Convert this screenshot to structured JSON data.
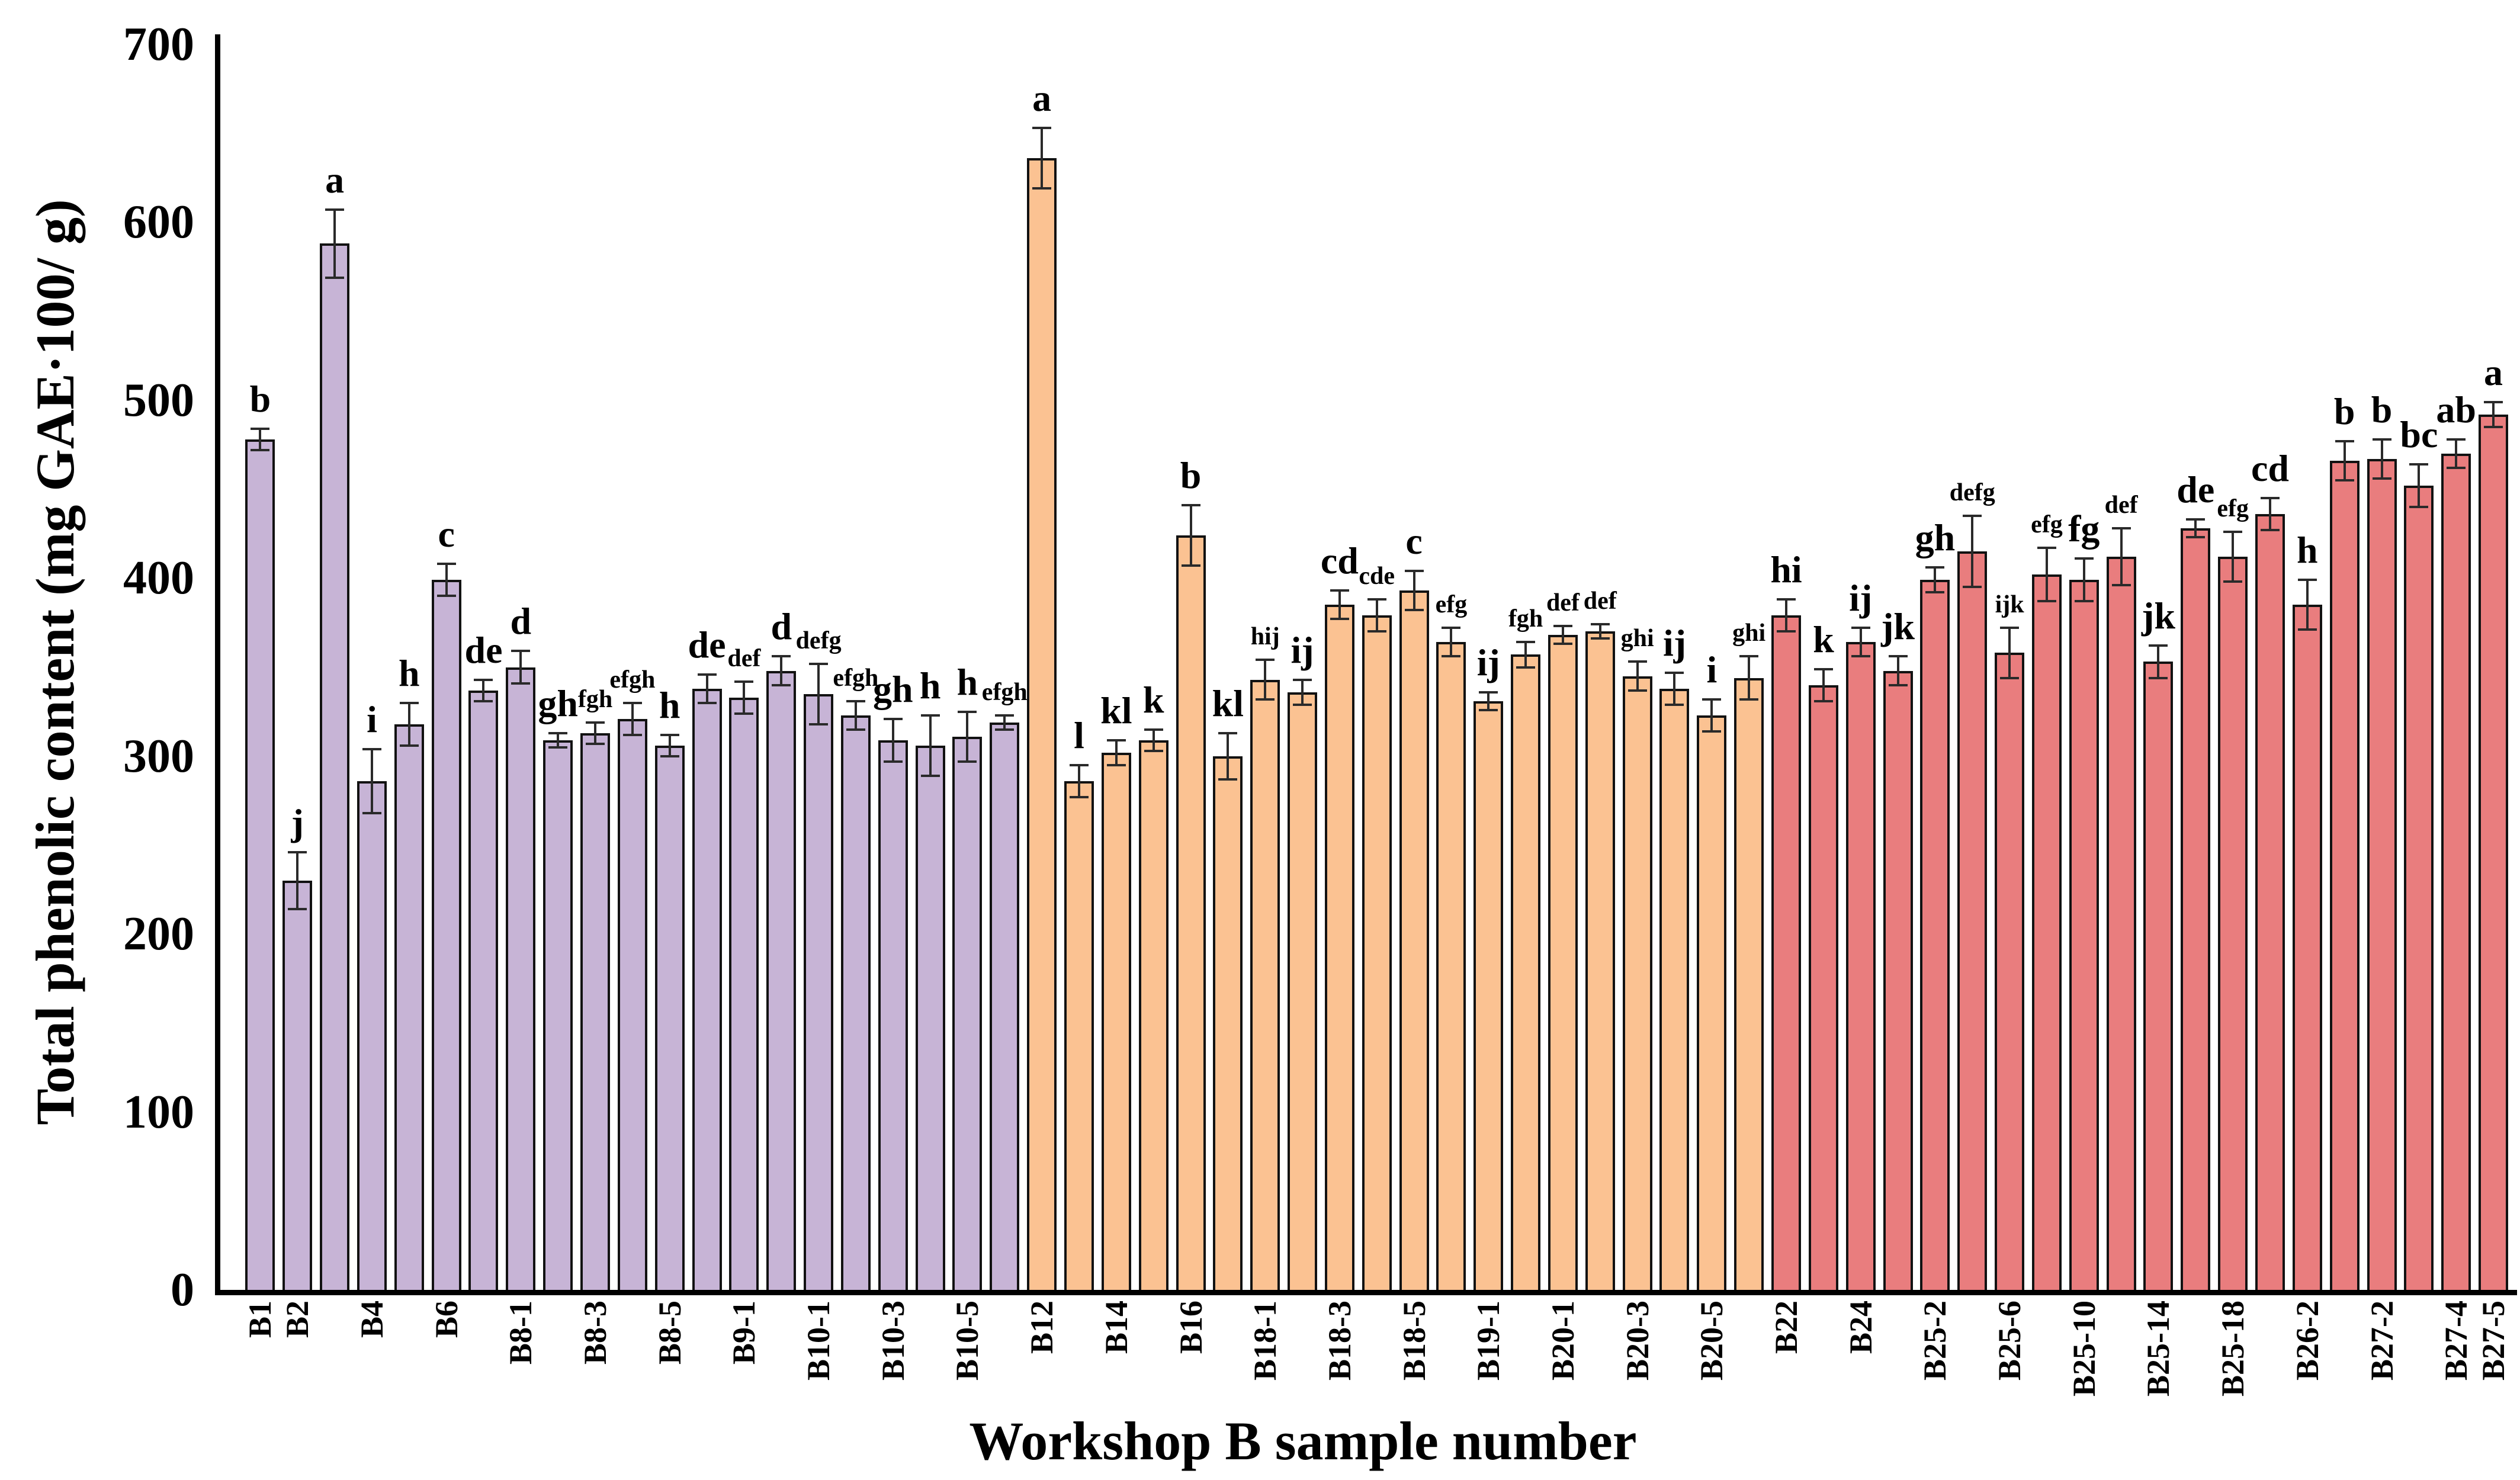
{
  "chart_data": {
    "type": "bar",
    "title": "",
    "xlabel": "Workshop B sample number",
    "ylabel": "Total phenolic content (mg GAE·100/ g)",
    "ylim": [
      0,
      700
    ],
    "yticks": [
      0,
      100,
      200,
      300,
      400,
      500,
      600,
      700
    ],
    "grid": false,
    "legend": "none",
    "error_bars": "plus-minus with caps",
    "groups": {
      "purple": {
        "color": "#C7B4D6"
      },
      "orange": {
        "color": "#FBC292"
      },
      "red": {
        "color": "#E97D7E"
      }
    },
    "bars": [
      {
        "label": "B1",
        "letter": "b",
        "value": 478,
        "err": 6,
        "group": "purple"
      },
      {
        "label": "B2",
        "letter": "j",
        "value": 230,
        "err": 16,
        "group": "purple"
      },
      {
        "label": null,
        "letter": "a",
        "value": 588,
        "err": 19,
        "group": "purple"
      },
      {
        "label": "B4",
        "letter": "i",
        "value": 286,
        "err": 18,
        "group": "purple"
      },
      {
        "label": null,
        "letter": "h",
        "value": 318,
        "err": 12,
        "group": "purple"
      },
      {
        "label": "B6",
        "letter": "c",
        "value": 399,
        "err": 9,
        "group": "purple"
      },
      {
        "label": null,
        "letter": "de",
        "value": 337,
        "err": 6,
        "group": "purple"
      },
      {
        "label": "B8-1",
        "letter": "d",
        "value": 350,
        "err": 9,
        "group": "purple"
      },
      {
        "label": null,
        "letter": "gh",
        "value": 309,
        "err": 4,
        "group": "purple"
      },
      {
        "label": "B8-3",
        "letter": "fgh",
        "value": 313,
        "err": 6,
        "group": "purple"
      },
      {
        "label": null,
        "letter": "efgh",
        "value": 321,
        "err": 9,
        "group": "purple"
      },
      {
        "label": "B8-5",
        "letter": "h",
        "value": 306,
        "err": 6,
        "group": "purple"
      },
      {
        "label": null,
        "letter": "de",
        "value": 338,
        "err": 8,
        "group": "purple"
      },
      {
        "label": "B9-1",
        "letter": "def",
        "value": 333,
        "err": 9,
        "group": "purple"
      },
      {
        "label": null,
        "letter": "d",
        "value": 348,
        "err": 8,
        "group": "purple"
      },
      {
        "label": "B10-1",
        "letter": "defg",
        "value": 335,
        "err": 17,
        "group": "purple"
      },
      {
        "label": null,
        "letter": "efgh",
        "value": 323,
        "err": 8,
        "group": "purple"
      },
      {
        "label": "B10-3",
        "letter": "gh",
        "value": 309,
        "err": 12,
        "group": "purple"
      },
      {
        "label": null,
        "letter": "h",
        "value": 306,
        "err": 17,
        "group": "purple"
      },
      {
        "label": "B10-5",
        "letter": "h",
        "value": 311,
        "err": 14,
        "group": "purple"
      },
      {
        "label": null,
        "letter": "efgh",
        "value": 319,
        "err": 4,
        "group": "purple"
      },
      {
        "label": "B12",
        "letter": "a",
        "value": 636,
        "err": 17,
        "group": "orange"
      },
      {
        "label": null,
        "letter": "l",
        "value": 286,
        "err": 9,
        "group": "orange"
      },
      {
        "label": "B14",
        "letter": "kl",
        "value": 302,
        "err": 7,
        "group": "orange"
      },
      {
        "label": null,
        "letter": "k",
        "value": 309,
        "err": 6,
        "group": "orange"
      },
      {
        "label": "B16",
        "letter": "b",
        "value": 424,
        "err": 17,
        "group": "orange"
      },
      {
        "label": null,
        "letter": "kl",
        "value": 300,
        "err": 13,
        "group": "orange"
      },
      {
        "label": "B18-1",
        "letter": "hij",
        "value": 343,
        "err": 11,
        "group": "orange"
      },
      {
        "label": null,
        "letter": "ij",
        "value": 336,
        "err": 7,
        "group": "orange"
      },
      {
        "label": "B18-3",
        "letter": "cd",
        "value": 385,
        "err": 8,
        "group": "orange"
      },
      {
        "label": null,
        "letter": "cde",
        "value": 379,
        "err": 9,
        "group": "orange"
      },
      {
        "label": "B18-5",
        "letter": "c",
        "value": 393,
        "err": 11,
        "group": "orange"
      },
      {
        "label": null,
        "letter": "efg",
        "value": 364,
        "err": 8,
        "group": "orange"
      },
      {
        "label": "B19-1",
        "letter": "ij",
        "value": 331,
        "err": 5,
        "group": "orange"
      },
      {
        "label": null,
        "letter": "fgh",
        "value": 357,
        "err": 7,
        "group": "orange"
      },
      {
        "label": "B20-1",
        "letter": "def",
        "value": 368,
        "err": 5,
        "group": "orange"
      },
      {
        "label": null,
        "letter": "def",
        "value": 370,
        "err": 4,
        "group": "orange"
      },
      {
        "label": "B20-3",
        "letter": "ghi",
        "value": 345,
        "err": 8,
        "group": "orange"
      },
      {
        "label": null,
        "letter": "ij",
        "value": 338,
        "err": 9,
        "group": "orange"
      },
      {
        "label": "B20-5",
        "letter": "i",
        "value": 323,
        "err": 9,
        "group": "orange"
      },
      {
        "label": null,
        "letter": "ghi",
        "value": 344,
        "err": 12,
        "group": "orange"
      },
      {
        "label": "B22",
        "letter": "hi",
        "value": 379,
        "err": 9,
        "group": "red"
      },
      {
        "label": null,
        "letter": "k",
        "value": 340,
        "err": 9,
        "group": "red"
      },
      {
        "label": "B24",
        "letter": "ij",
        "value": 364,
        "err": 8,
        "group": "red"
      },
      {
        "label": null,
        "letter": "jk",
        "value": 348,
        "err": 8,
        "group": "red"
      },
      {
        "label": "B25-2",
        "letter": "gh",
        "value": 399,
        "err": 7,
        "group": "red"
      },
      {
        "label": null,
        "letter": "defg",
        "value": 415,
        "err": 20,
        "group": "red"
      },
      {
        "label": "B25-6",
        "letter": "ijk",
        "value": 358,
        "err": 14,
        "group": "red"
      },
      {
        "label": null,
        "letter": "efg",
        "value": 402,
        "err": 15,
        "group": "red"
      },
      {
        "label": "B25-10",
        "letter": "fg",
        "value": 399,
        "err": 12,
        "group": "red"
      },
      {
        "label": null,
        "letter": "def",
        "value": 412,
        "err": 16,
        "group": "red"
      },
      {
        "label": "B25-14",
        "letter": "jk",
        "value": 353,
        "err": 9,
        "group": "red"
      },
      {
        "label": null,
        "letter": "de",
        "value": 428,
        "err": 5,
        "group": "red"
      },
      {
        "label": "B25-18",
        "letter": "efg",
        "value": 412,
        "err": 14,
        "group": "red"
      },
      {
        "label": null,
        "letter": "cd",
        "value": 436,
        "err": 9,
        "group": "red"
      },
      {
        "label": "B26-2",
        "letter": "h",
        "value": 385,
        "err": 14,
        "group": "red"
      },
      {
        "label": null,
        "letter": "b",
        "value": 466,
        "err": 11,
        "group": "red"
      },
      {
        "label": "B27-2",
        "letter": "b",
        "value": 467,
        "err": 11,
        "group": "red"
      },
      {
        "label": null,
        "letter": "bc",
        "value": 452,
        "err": 12,
        "group": "red"
      },
      {
        "label": "B27-4",
        "letter": "ab",
        "value": 470,
        "err": 8,
        "group": "red"
      },
      {
        "label": "B27-5",
        "letter": "a",
        "value": 492,
        "err": 7,
        "group": "red"
      }
    ],
    "style": {
      "bar_border_color": "#121212",
      "error_bar_color": "#2a2a2a",
      "background": "#ffffff"
    }
  }
}
